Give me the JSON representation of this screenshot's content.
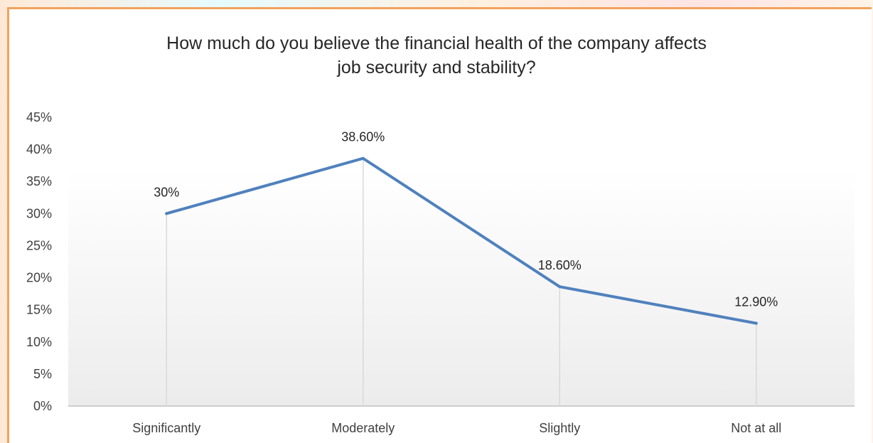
{
  "chart_data": {
    "type": "line",
    "title_lines": [
      "How much do you believe the financial health of the company affects",
      "job security and stability?"
    ],
    "categories": [
      "Significantly",
      "Moderately",
      "Slightly",
      "Not at all"
    ],
    "series": [
      {
        "values": [
          30,
          38.6,
          18.6,
          12.9
        ],
        "data_labels": [
          "30%",
          "38.60%",
          "18.60%",
          "12.90%"
        ],
        "color": "#4f81bd"
      }
    ],
    "ylim": [
      0,
      45
    ],
    "yticks": [
      0,
      5,
      10,
      15,
      20,
      25,
      30,
      35,
      40,
      45
    ],
    "ytick_labels": [
      "0%",
      "5%",
      "10%",
      "15%",
      "20%",
      "25%",
      "30%",
      "35%",
      "40%",
      "45%"
    ],
    "drop_lines": true,
    "grid": false,
    "legend": "none"
  }
}
